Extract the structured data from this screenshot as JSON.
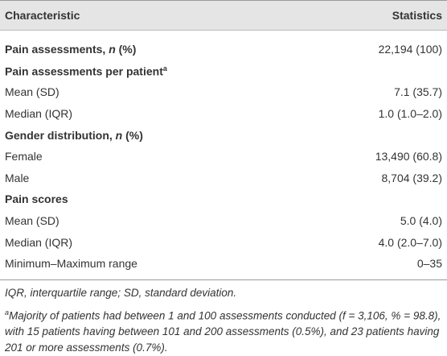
{
  "table": {
    "header": [
      "Characteristic",
      "Statistics"
    ],
    "rows": [
      {
        "bold": true,
        "label": [
          "Pain assessments, ",
          {
            "text": "n",
            "italic": true
          },
          " (%)"
        ],
        "value": "22,194 (100)"
      },
      {
        "bold": true,
        "label": [
          "Pain assessments per patient"
        ],
        "sup": "a"
      },
      {
        "label": [
          "Mean (SD)"
        ],
        "value": "7.1 (35.7)"
      },
      {
        "label": [
          "Median (IQR)"
        ],
        "value": "1.0 (1.0–2.0)"
      },
      {
        "bold": true,
        "label": [
          "Gender distribution, ",
          {
            "text": "n",
            "italic": true
          },
          " (%)"
        ]
      },
      {
        "label": [
          "Female"
        ],
        "value": "13,490 (60.8)"
      },
      {
        "label": [
          "Male"
        ],
        "value": "8,704 (39.2)"
      },
      {
        "bold": true,
        "label": [
          "Pain scores"
        ]
      },
      {
        "label": [
          "Mean (SD)"
        ],
        "value": "5.0 (4.0)"
      },
      {
        "label": [
          "Median (IQR)"
        ],
        "value": "4.0 (2.0–7.0)"
      },
      {
        "label": [
          "Minimum–Maximum range"
        ],
        "value": "0–35"
      }
    ]
  },
  "footnotes": [
    {
      "text": "IQR, interquartile range; SD, standard deviation."
    },
    {
      "sup": "a",
      "text": "Majority of patients had between 1 and 100 assessments conducted (f = 3,106, % = 98.8), with 15 patients having between 101 and 200 assessments (0.5%), and 23 patients having 201 or more assessments (0.7%)."
    }
  ]
}
